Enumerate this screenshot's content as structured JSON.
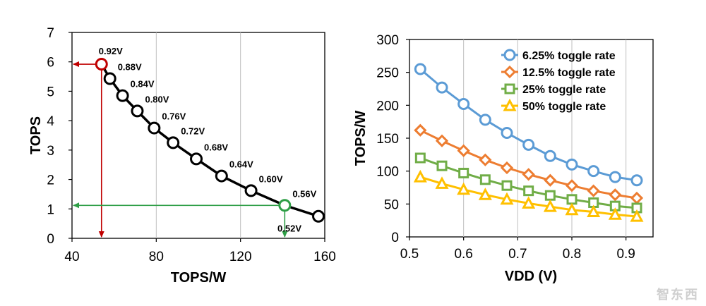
{
  "watermark": "智东西",
  "chart_data": [
    {
      "type": "scatter",
      "xlabel": "TOPS/W",
      "ylabel": "TOPS",
      "xlim": [
        40,
        160
      ],
      "ylim": [
        0,
        7
      ],
      "xticks": [
        "40",
        "80",
        "120",
        "160"
      ],
      "yticks": [
        "0",
        "1",
        "2",
        "3",
        "4",
        "5",
        "6",
        "7"
      ],
      "grid": "vertical",
      "points": [
        {
          "x": 54,
          "y": 5.92,
          "label": "0.92V",
          "highlight": "#c00000"
        },
        {
          "x": 58,
          "y": 5.43,
          "label": "0.88V"
        },
        {
          "x": 64,
          "y": 4.85,
          "label": "0.84V"
        },
        {
          "x": 71,
          "y": 4.33,
          "label": "0.80V"
        },
        {
          "x": 79,
          "y": 3.75,
          "label": "0.76V"
        },
        {
          "x": 88,
          "y": 3.25,
          "label": "0.72V"
        },
        {
          "x": 99,
          "y": 2.7,
          "label": "0.68V"
        },
        {
          "x": 111,
          "y": 2.12,
          "label": "0.64V"
        },
        {
          "x": 125,
          "y": 1.62,
          "label": "0.60V"
        },
        {
          "x": 141,
          "y": 1.12,
          "label": "0.56V",
          "highlight": "#2e9e46"
        },
        {
          "x": 157,
          "y": 0.75,
          "label": "0.52V"
        }
      ],
      "line_color": "#000000",
      "arrows": [
        {
          "color": "#c00000",
          "from_point": 0
        },
        {
          "color": "#2e9e46",
          "from_point": 9
        }
      ]
    },
    {
      "type": "line",
      "xlabel": "VDD (V)",
      "ylabel": "TOPS/W",
      "xlim": [
        0.5,
        0.95
      ],
      "ylim": [
        0,
        300
      ],
      "xticks": [
        "0.5",
        "0.6",
        "0.7",
        "0.8",
        "0.9"
      ],
      "yticks": [
        "0",
        "50",
        "100",
        "150",
        "200",
        "250",
        "300"
      ],
      "grid": "vertical",
      "x": [
        0.52,
        0.56,
        0.6,
        0.64,
        0.68,
        0.72,
        0.76,
        0.8,
        0.84,
        0.88,
        0.92
      ],
      "series": [
        {
          "name": "6.25% toggle rate",
          "color": "#5b9bd5",
          "marker": "circle",
          "values": [
            255,
            227,
            202,
            178,
            158,
            140,
            123,
            110,
            100,
            91,
            86
          ]
        },
        {
          "name": "12.5% toggle rate",
          "color": "#ed7d31",
          "marker": "diamond",
          "values": [
            162,
            146,
            131,
            117,
            105,
            95,
            86,
            78,
            70,
            64,
            59
          ]
        },
        {
          "name": "25% toggle rate",
          "color": "#70ad47",
          "marker": "square",
          "values": [
            120,
            108,
            97,
            87,
            78,
            70,
            63,
            57,
            52,
            47,
            44
          ]
        },
        {
          "name": "50% toggle rate",
          "color": "#ffc000",
          "marker": "triangle",
          "values": [
            91,
            81,
            72,
            64,
            57,
            51,
            46,
            41,
            38,
            34,
            31
          ]
        }
      ],
      "legend_position": "top-right"
    }
  ]
}
